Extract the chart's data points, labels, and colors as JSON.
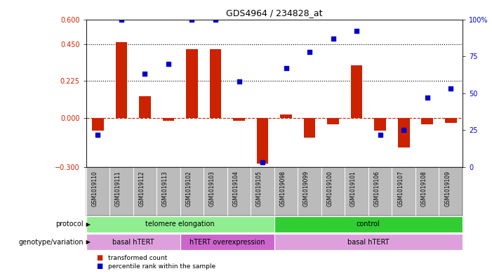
{
  "title": "GDS4964 / 234828_at",
  "samples": [
    "GSM1019110",
    "GSM1019111",
    "GSM1019112",
    "GSM1019113",
    "GSM1019102",
    "GSM1019103",
    "GSM1019104",
    "GSM1019105",
    "GSM1019098",
    "GSM1019099",
    "GSM1019100",
    "GSM1019101",
    "GSM1019106",
    "GSM1019107",
    "GSM1019108",
    "GSM1019109"
  ],
  "red_bars": [
    -0.08,
    0.46,
    0.13,
    -0.02,
    0.42,
    0.42,
    -0.02,
    -0.28,
    0.02,
    -0.12,
    -0.04,
    0.32,
    -0.08,
    -0.18,
    -0.04,
    -0.03
  ],
  "blue_dots_right": [
    22,
    100,
    63,
    70,
    100,
    100,
    58,
    3,
    67,
    78,
    87,
    92,
    22,
    25,
    47,
    53
  ],
  "ylim": [
    -0.3,
    0.6
  ],
  "yticks_left": [
    -0.3,
    0,
    0.225,
    0.45,
    0.6
  ],
  "yticks_right": [
    0,
    25,
    50,
    75,
    100
  ],
  "hlines": [
    0.225,
    0.45
  ],
  "protocol_groups": [
    {
      "label": "telomere elongation",
      "start": 0,
      "end": 8,
      "color": "#90EE90"
    },
    {
      "label": "control",
      "start": 8,
      "end": 16,
      "color": "#32CD32"
    }
  ],
  "genotype_groups": [
    {
      "label": "basal hTERT",
      "start": 0,
      "end": 4,
      "color": "#DDA0DD"
    },
    {
      "label": "hTERT overexpression",
      "start": 4,
      "end": 8,
      "color": "#CC66CC"
    },
    {
      "label": "basal hTERT",
      "start": 8,
      "end": 16,
      "color": "#DDA0DD"
    }
  ],
  "bar_color": "#CC2200",
  "dot_color": "#0000CC",
  "dashed_line_color": "#CC2200",
  "bg_color": "#FFFFFF",
  "sample_label_bg": "#BBBBBB",
  "left_label_protocol": "protocol",
  "left_label_genotype": "genotype/variation",
  "legend_bar": "transformed count",
  "legend_dot": "percentile rank within the sample"
}
